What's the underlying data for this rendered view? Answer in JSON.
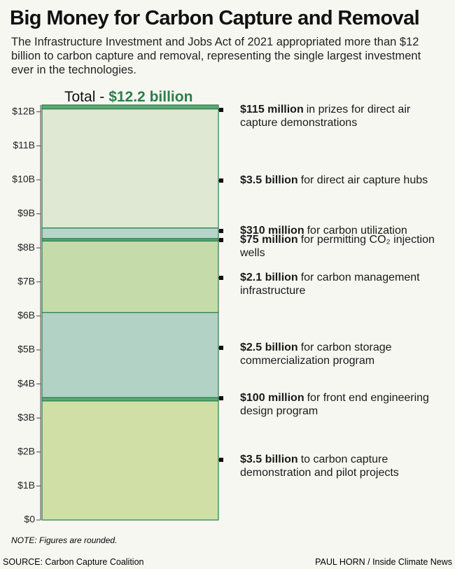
{
  "title": "Big Money for Carbon Capture and Removal",
  "subtitle": "The Infrastructure Investment and Jobs Act of 2021 appropriated more than $12 billion to carbon capture and removal, representing the single largest investment ever in the technologies.",
  "note": "NOTE: Figures are rounded.",
  "source": "SOURCE: Carbon Capture Coalition",
  "credit": "PAUL HORN / Inside Climate News",
  "chart_data": {
    "type": "stacked-bar",
    "total_label": "Total -",
    "total_value_label": "$12.2 billion",
    "categories": [
      "to carbon capture demonstration and pilot projects",
      "for front end engineering design program",
      "for carbon storage commercialization program",
      "for carbon management infrastructure",
      "for permitting CO₂ injection wells",
      "for carbon utilization",
      "for direct air capture hubs",
      "in prizes for direct air capture demonstrations"
    ],
    "values": [
      3.5,
      0.1,
      2.5,
      2.1,
      0.075,
      0.31,
      3.5,
      0.115
    ],
    "value_labels": [
      "$3.5 billion",
      "$100 million",
      "$2.5 billion",
      "$2.1 billion",
      "$75 million",
      "$310 million",
      "$3.5 billion",
      "$115 million"
    ],
    "colors": [
      "#c8da98",
      "#3f9a62",
      "#a6cbbd",
      "#bcd69c",
      "#3f9a62",
      "#a9d0c2",
      "#d9e5cc",
      "#3f9a62"
    ],
    "ylim": [
      0,
      12.2
    ],
    "yticks": [
      {
        "value": 0,
        "label": "$0"
      },
      {
        "value": 1,
        "label": "$1B"
      },
      {
        "value": 2,
        "label": "$2B"
      },
      {
        "value": 3,
        "label": "$3B"
      },
      {
        "value": 4,
        "label": "$4B"
      },
      {
        "value": 5,
        "label": "$5B"
      },
      {
        "value": 6,
        "label": "$6B"
      },
      {
        "value": 7,
        "label": "$7B"
      },
      {
        "value": 8,
        "label": "$8B"
      },
      {
        "value": 9,
        "label": "$9B"
      },
      {
        "value": 10,
        "label": "$10B"
      },
      {
        "value": 11,
        "label": "$11B"
      },
      {
        "value": 12,
        "label": "$12B"
      }
    ]
  }
}
